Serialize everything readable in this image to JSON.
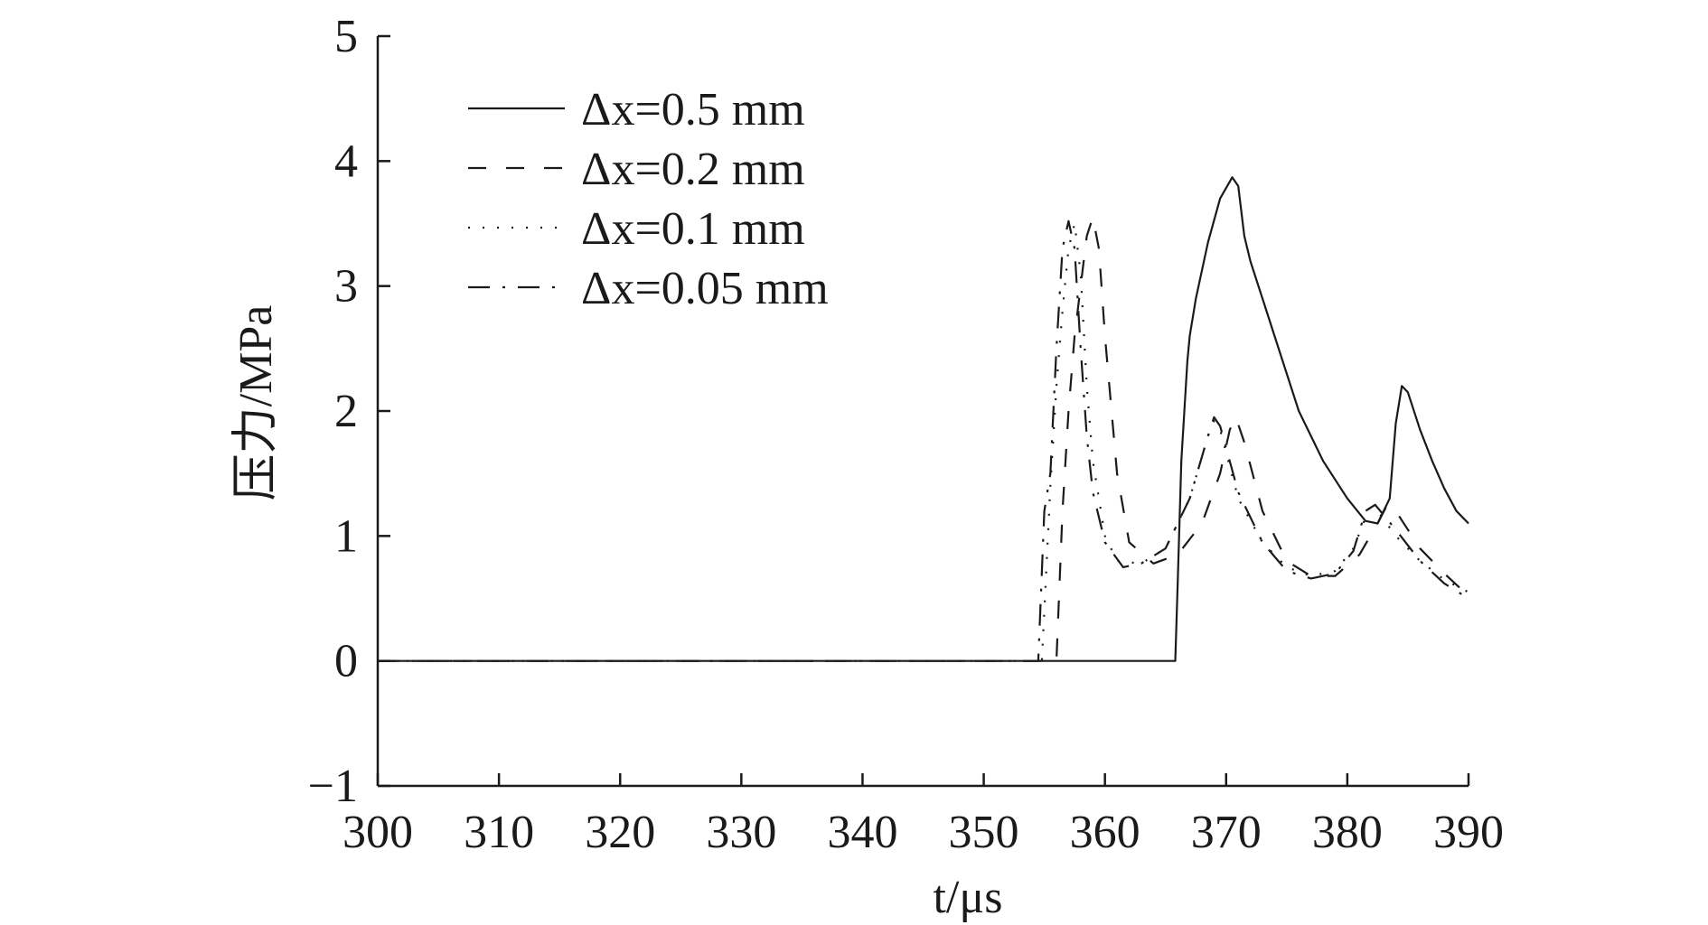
{
  "chart_data": {
    "type": "line",
    "xlabel": "t/μs",
    "ylabel": "压力/MPa",
    "xlim": [
      300,
      390
    ],
    "ylim": [
      -1,
      5
    ],
    "xticks": [
      "300",
      "310",
      "320",
      "330",
      "340",
      "350",
      "360",
      "370",
      "380",
      "390"
    ],
    "yticks": [
      "5",
      "4",
      "3",
      "2",
      "1",
      "0",
      "−1"
    ],
    "grid": false,
    "legend_position": "top-left",
    "series": [
      {
        "name": "Δx=0.5 mm",
        "dash": "solid",
        "x": [
          300,
          365.8,
          366.0,
          366.3,
          366.8,
          367.0,
          367.5,
          368.5,
          369.5,
          370.5,
          371.0,
          371.5,
          372.0,
          374.0,
          376.0,
          378.0,
          380.0,
          381.5,
          382.5,
          383.5,
          384.0,
          384.5,
          385.0,
          386.0,
          387.0,
          388.0,
          389.0,
          390.0
        ],
        "y": [
          0,
          0,
          0.6,
          1.6,
          2.4,
          2.6,
          2.9,
          3.35,
          3.7,
          3.87,
          3.8,
          3.4,
          3.2,
          2.6,
          2.0,
          1.6,
          1.3,
          1.12,
          1.1,
          1.3,
          1.9,
          2.2,
          2.15,
          1.85,
          1.6,
          1.38,
          1.2,
          1.1
        ]
      },
      {
        "name": "Δx=0.2 mm",
        "dash": "long-dash",
        "x": [
          300,
          356.0,
          356.5,
          357.0,
          357.5,
          358.0,
          358.5,
          359.0,
          359.5,
          360.0,
          361.0,
          362.0,
          364.0,
          366.0,
          368.0,
          369.5,
          370.3,
          370.8,
          371.5,
          373.0,
          375.0,
          377.0,
          379.0,
          381.0,
          382.5,
          383.3,
          384.0,
          386.0,
          388.0,
          390.0
        ],
        "y": [
          0,
          0,
          1.2,
          2.0,
          2.6,
          3.0,
          3.4,
          3.55,
          3.3,
          2.6,
          1.5,
          0.95,
          0.78,
          0.85,
          1.1,
          1.5,
          1.85,
          1.95,
          1.75,
          1.2,
          0.8,
          0.68,
          0.68,
          0.85,
          1.1,
          1.25,
          1.2,
          0.9,
          0.7,
          0.52
        ]
      },
      {
        "name": "Δx=0.1 mm",
        "dash": "dotted",
        "x": [
          300,
          354.8,
          355.5,
          356.0,
          356.5,
          357.0,
          357.5,
          358.0,
          358.5,
          359.0,
          360.0,
          361.0,
          363.0,
          365.0,
          367.0,
          368.5,
          369.0,
          369.5,
          371.0,
          373.0,
          375.0,
          377.0,
          379.0,
          380.5,
          381.8,
          382.5,
          384.0,
          386.0,
          388.0,
          390.0
        ],
        "y": [
          0,
          0,
          1.4,
          2.2,
          2.8,
          3.3,
          3.5,
          3.1,
          2.2,
          1.6,
          1.0,
          0.8,
          0.78,
          0.9,
          1.3,
          1.8,
          1.92,
          1.85,
          1.3,
          0.95,
          0.75,
          0.68,
          0.72,
          0.9,
          1.22,
          1.2,
          1.0,
          0.8,
          0.65,
          0.55
        ]
      },
      {
        "name": "Δx=0.05 mm",
        "dash": "dash-dot",
        "x": [
          300,
          354.5,
          355.0,
          355.5,
          356.0,
          356.5,
          357.0,
          357.5,
          358.0,
          358.5,
          359.0,
          360.0,
          361.5,
          363.0,
          365.0,
          367.0,
          368.5,
          369.0,
          369.5,
          371.0,
          373.0,
          375.0,
          377.0,
          379.0,
          380.5,
          381.5,
          382.3,
          384.0,
          386.0,
          388.0,
          390.0
        ],
        "y": [
          0,
          0,
          1.2,
          1.5,
          2.5,
          3.3,
          3.52,
          3.3,
          2.5,
          1.8,
          1.35,
          0.95,
          0.75,
          0.78,
          0.9,
          1.3,
          1.8,
          1.95,
          1.88,
          1.35,
          0.95,
          0.72,
          0.66,
          0.7,
          0.88,
          1.2,
          1.25,
          1.05,
          0.8,
          0.62,
          0.5
        ]
      }
    ]
  }
}
